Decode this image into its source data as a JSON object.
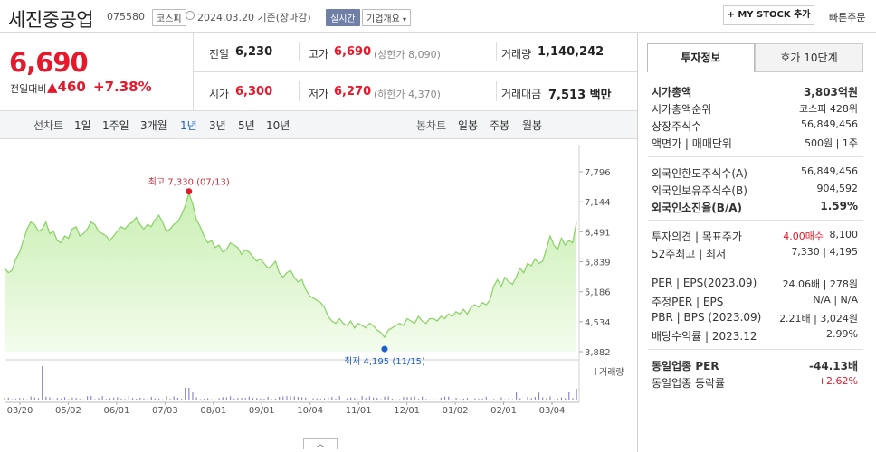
{
  "header": {
    "stock_name": "세진중공업",
    "stock_code": "075580",
    "market": "코스피",
    "date": "2024.03.20",
    "date_note": "기준(장마감)",
    "live_label": "실시간",
    "company_info_label": "기업개요",
    "mystock_label": "+ MY STOCK 추가",
    "quick_order_label": "빠른주문"
  },
  "price_box": {
    "price": "6,690",
    "change_label": "전일대비",
    "change_value": "▲460",
    "change_percent": "+7.38%"
  },
  "summary": {
    "prev_label": "전일",
    "prev_value": "6,230",
    "high_label": "고가",
    "high_value": "6,690",
    "upper_limit": "(상한가 8,090)",
    "volume_label": "거래량",
    "volume_value": "1,140,242",
    "open_label": "시가",
    "open_value": "6,300",
    "low_label": "저가",
    "low_value": "6,270",
    "lower_limit": "(하한가 4,370)",
    "amount_label": "거래대금",
    "amount_value": "7,513",
    "amount_unit": "백만"
  },
  "range_tabs": {
    "line_chart_label": "선차트",
    "items": [
      "1일",
      "1주일",
      "3개월",
      "1년",
      "3년",
      "5년",
      "10년"
    ],
    "selected": "1년",
    "candle_label": "봉차트",
    "candle_items": [
      "일봉",
      "주봉",
      "월봉"
    ]
  },
  "right_panel": {
    "tab_invest": "투자정보",
    "tab_quote": "호가 10단계",
    "rows1": [
      {
        "k": "시가총액",
        "v": "3,803억원"
      },
      {
        "k": "시가총액순위",
        "v": "코스피 428위"
      },
      {
        "k": "상장주식수",
        "v": "56,849,456"
      },
      {
        "k": "액면가 | 매매단위",
        "v": "500원 | 1주"
      }
    ],
    "rows2": [
      {
        "k": "외국인한도주식수(A)",
        "v": "56,849,456"
      },
      {
        "k": "외국인보유주식수(B)",
        "v": "904,592"
      },
      {
        "k": "외국인소진율(B/A)",
        "v": "1.59%"
      }
    ],
    "rows3": [
      {
        "k": "투자의견 | 목표주가",
        "v1": "4.00매수",
        "v2": "8,100"
      },
      {
        "k": "52주최고 | 최저",
        "v": "7,330 | 4,195"
      }
    ],
    "rows4": [
      {
        "k": "PER | EPS(2023.09)",
        "v": "24.06배 | 278원"
      },
      {
        "k": "추정PER | EPS",
        "v": "N/A | N/A"
      },
      {
        "k": "PBR | BPS (2023.09)",
        "v": "2.21배 | 3,024원"
      },
      {
        "k": "배당수익률 | 2023.12",
        "v": "2.99%"
      }
    ],
    "rows5": [
      {
        "k": "동일업종 PER",
        "v": "-44.13배"
      },
      {
        "k": "동일업종 등락률",
        "v": "+2.62%"
      }
    ]
  },
  "colors": {
    "up": "#e5192b",
    "down": "#1f5fc9",
    "line": "#8ed36b",
    "fill_top": "#c9efb3",
    "fill_bottom": "#f3fcec"
  },
  "chart_data": {
    "type": "area",
    "y_ticks": [
      "7,796",
      "7,144",
      "6,491",
      "5,839",
      "5,186",
      "4,534",
      "3,882"
    ],
    "ylim": [
      3882,
      7796
    ],
    "x_ticks": [
      "03/20",
      "05/02",
      "06/01",
      "07/03",
      "08/01",
      "09/01",
      "10/04",
      "11/01",
      "12/01",
      "01/02",
      "02/01",
      "03/04"
    ],
    "values": [
      5700,
      5600,
      5650,
      5900,
      6050,
      6300,
      6550,
      6700,
      6650,
      6500,
      6550,
      6700,
      6450,
      6500,
      6300,
      6250,
      6400,
      6350,
      6550,
      6600,
      6400,
      6450,
      6550,
      6700,
      6650,
      6500,
      6450,
      6400,
      6300,
      6400,
      6500,
      6600,
      6550,
      6650,
      6700,
      6800,
      6650,
      6550,
      6650,
      6600,
      6750,
      6850,
      6700,
      6500,
      6550,
      6650,
      6700,
      6850,
      7050,
      7330,
      7100,
      6750,
      6600,
      6400,
      6250,
      6300,
      6150,
      6200,
      6050,
      6100,
      6250,
      6200,
      6150,
      6000,
      6100,
      6050,
      5950,
      5850,
      5900,
      5800,
      5700,
      5750,
      5850,
      5600,
      5500,
      5600,
      5650,
      5500,
      5400,
      5450,
      5250,
      5100,
      5050,
      5000,
      4950,
      4850,
      4650,
      4550,
      4500,
      4600,
      4500,
      4450,
      4550,
      4400,
      4500,
      4450,
      4400,
      4500,
      4450,
      4350,
      4300,
      4195,
      4350,
      4400,
      4450,
      4500,
      4450,
      4600,
      4550,
      4500,
      4650,
      4550,
      4500,
      4600,
      4600,
      4550,
      4650,
      4600,
      4700,
      4650,
      4750,
      4700,
      4800,
      4700,
      4850,
      4900,
      4850,
      4950,
      4900,
      5000,
      5300,
      5450,
      5300,
      5500,
      5400,
      5350,
      5500,
      5700,
      5600,
      5800,
      5750,
      5900,
      5800,
      5850,
      6100,
      6400,
      6200,
      6100,
      6350,
      6200,
      6300,
      6250,
      6690
    ],
    "high_label": "최고 7,330 (07/13)",
    "low_label": "최저 4,195 (11/15)",
    "volume_label": "거래량"
  },
  "collapse_label": "︿"
}
